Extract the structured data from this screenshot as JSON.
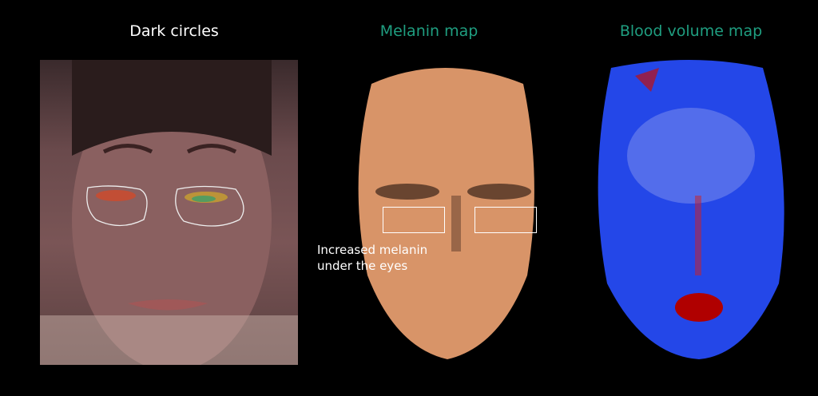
{
  "titles": {
    "dark_circles": "Dark circles",
    "melanin": "Melanin map",
    "blood": "Blood volume map"
  },
  "annotation": {
    "line1": "Increased melanin",
    "line2": "under the eyes"
  },
  "colors": {
    "title_white": "#ffffff",
    "title_accent": "#1f9e80",
    "melanin": "#e09a6c",
    "blood": "#1f3fe0",
    "blood_high": "#b00000"
  }
}
